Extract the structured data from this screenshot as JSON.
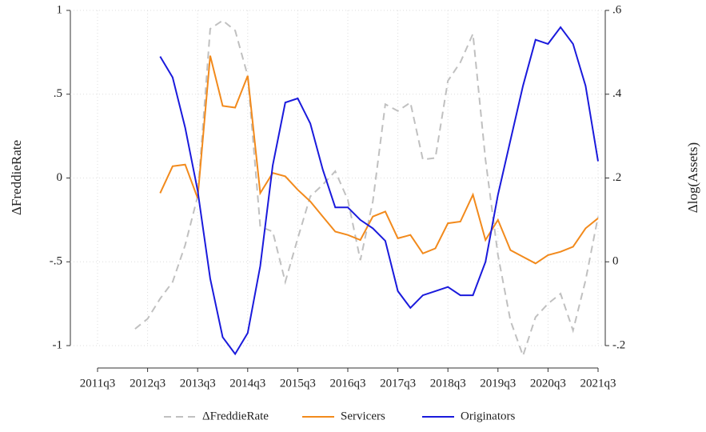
{
  "chart_data": {
    "type": "line",
    "x": [
      "2012q2",
      "2012q3",
      "2012q4",
      "2013q1",
      "2013q2",
      "2013q3",
      "2013q4",
      "2014q1",
      "2014q2",
      "2014q3",
      "2014q4",
      "2015q1",
      "2015q2",
      "2015q3",
      "2015q4",
      "2016q1",
      "2016q2",
      "2016q3",
      "2016q4",
      "2017q1",
      "2017q2",
      "2017q3",
      "2017q4",
      "2018q1",
      "2018q2",
      "2018q3",
      "2018q4",
      "2019q1",
      "2019q2",
      "2019q3",
      "2019q4",
      "2020q1",
      "2020q2",
      "2020q3",
      "2020q4",
      "2021q1",
      "2021q2",
      "2021q3"
    ],
    "xticks": [
      "2011q3",
      "2012q3",
      "2013q3",
      "2014q3",
      "2015q3",
      "2016q3",
      "2017q3",
      "2018q3",
      "2019q3",
      "2020q3",
      "2021q3"
    ],
    "ylabel": "ΔFreddieRate",
    "y2label": "Δlog(Assets)",
    "ylim": [
      -1,
      1
    ],
    "yticks": [
      {
        "value": -1,
        "label": "-1"
      },
      {
        "value": -0.5,
        "label": "-.5"
      },
      0,
      {
        "value": 0.5,
        "label": ".5"
      },
      1
    ],
    "y2lim": [
      -0.2,
      0.6
    ],
    "y2ticks": [
      {
        "value": -0.2,
        "label": "-.2"
      },
      0,
      {
        "value": 0.2,
        "label": ".2"
      },
      {
        "value": 0.4,
        "label": ".4"
      },
      {
        "value": 0.6,
        "label": ".6"
      }
    ],
    "grid": true,
    "legend": "bottom",
    "series": [
      {
        "name": "ΔFreddieRate",
        "color": "#c0c0c0",
        "dashed": true,
        "axis": "y",
        "values": [
          -0.9,
          -0.84,
          -0.72,
          -0.62,
          -0.4,
          -0.11,
          0.89,
          0.94,
          0.88,
          0.61,
          -0.29,
          -0.32,
          -0.62,
          -0.36,
          -0.11,
          -0.04,
          0.04,
          -0.13,
          -0.49,
          -0.14,
          0.44,
          0.4,
          0.45,
          0.11,
          0.12,
          0.58,
          0.69,
          0.86,
          0.11,
          -0.46,
          -0.85,
          -1.06,
          -0.83,
          -0.75,
          -0.69,
          -0.91,
          -0.61,
          -0.23
        ]
      },
      {
        "name": "Servicers",
        "color": "#f28a1c",
        "axis": "y",
        "values": [
          null,
          null,
          -0.09,
          0.07,
          0.08,
          -0.12,
          0.73,
          0.43,
          0.42,
          0.61,
          -0.09,
          0.03,
          0.01,
          -0.07,
          -0.14,
          -0.23,
          -0.32,
          -0.34,
          -0.37,
          -0.23,
          -0.2,
          -0.36,
          -0.34,
          -0.45,
          -0.42,
          -0.27,
          -0.26,
          -0.1,
          -0.37,
          -0.25,
          -0.43,
          -0.47,
          -0.51,
          -0.46,
          -0.44,
          -0.41,
          -0.3,
          -0.24
        ]
      },
      {
        "name": "Originators",
        "color": "#1a1adc",
        "axis": "y2",
        "values": [
          null,
          null,
          0.49,
          0.44,
          0.32,
          0.17,
          -0.04,
          -0.18,
          -0.22,
          -0.17,
          -0.01,
          0.23,
          0.38,
          0.39,
          0.33,
          0.22,
          0.13,
          0.13,
          0.1,
          0.08,
          0.05,
          -0.07,
          -0.11,
          -0.08,
          -0.07,
          -0.06,
          -0.08,
          -0.08,
          0,
          0.16,
          0.29,
          0.42,
          0.53,
          0.52,
          0.56,
          0.52,
          0.42,
          0.24
        ]
      }
    ]
  }
}
